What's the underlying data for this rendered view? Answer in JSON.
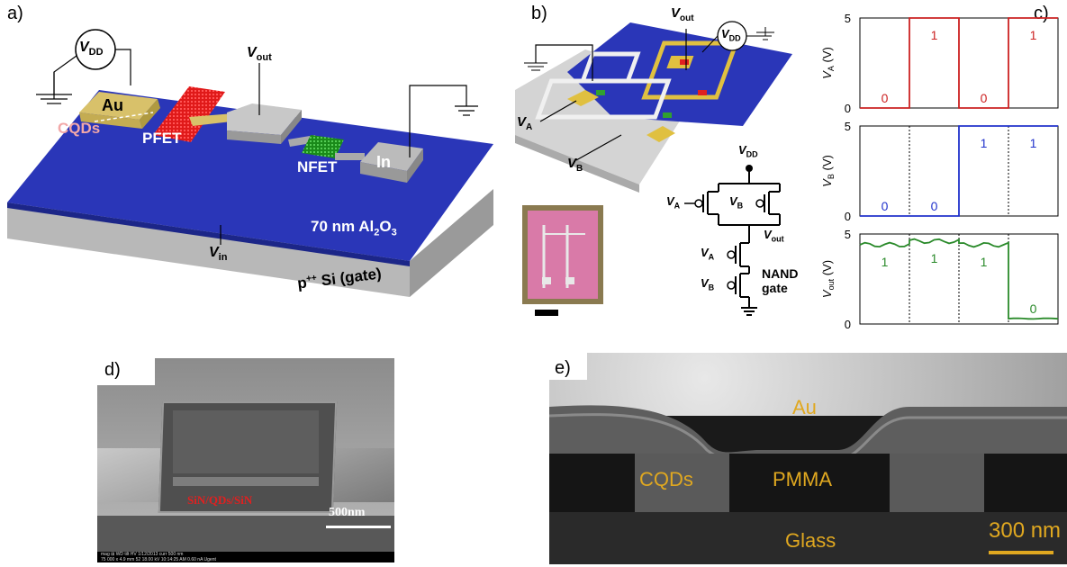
{
  "panels": {
    "a": {
      "label": "a)",
      "vdd": "V",
      "vdd_sub": "DD",
      "vout": "V",
      "vout_sub": "out",
      "vin": "V",
      "vin_sub": "in",
      "au": "Au",
      "cqds": "CQDs",
      "pfet": "PFET",
      "nfet": "NFET",
      "in": "In",
      "oxide_a": "70 nm Al",
      "oxide_sub": "2",
      "oxide_b": "O",
      "oxide_sub2": "3",
      "substrate_a": "p",
      "substrate_sup": "++",
      "substrate_b": " Si (gate)"
    },
    "b": {
      "label": "b)",
      "vout": "V",
      "vout_sub": "out",
      "vdd": "V",
      "vdd_sub": "DD",
      "va": "V",
      "va_sub": "A",
      "vb": "V",
      "vb_sub": "B",
      "sch_vdd": "V",
      "sch_vdd_sub": "DD",
      "sch_vout": "V",
      "sch_vout_sub": "out",
      "sch_va1": "V",
      "sch_va1_sub": "A",
      "sch_vb1": "V",
      "sch_vb1_sub": "B",
      "sch_va2": "V",
      "sch_va2_sub": "A",
      "sch_vb2": "V",
      "sch_vb2_sub": "B",
      "nand1": "NAND",
      "nand2": "gate"
    },
    "c": {
      "label": "c)"
    },
    "d": {
      "label": "d)",
      "layer": "SiN/QDs/SiN",
      "scale": "500nm",
      "info": "mag ⊞   WD    tilt   HV     1/12/2013    curr        500 nm",
      "info2": "75 000 x  4.9 mm  52   18.00 kV  10:14:25 AM  0.60 nA         Ugent"
    },
    "e": {
      "label": "e)",
      "au": "Au",
      "cqds": "CQDs",
      "pmma": "PMMA",
      "glass": "Glass",
      "scale": "300 nm"
    }
  },
  "chart_data": [
    {
      "type": "line",
      "ylabel": "V_A (V)",
      "ylim": [
        0,
        5
      ],
      "yticks": [
        0,
        5
      ],
      "color": "#cc2222",
      "segments": [
        0,
        1,
        0,
        1
      ],
      "values": [
        0,
        5,
        0,
        5
      ],
      "labels": [
        "0",
        "1",
        "0",
        "1"
      ]
    },
    {
      "type": "line",
      "ylabel": "V_B (V)",
      "ylim": [
        0,
        5
      ],
      "yticks": [
        0,
        5
      ],
      "color": "#2233cc",
      "segments": [
        0,
        0,
        1,
        1
      ],
      "values": [
        0,
        0,
        5,
        5
      ],
      "labels": [
        "0",
        "0",
        "1",
        "1"
      ]
    },
    {
      "type": "line",
      "ylabel": "V_out (V)",
      "ylim": [
        0,
        5
      ],
      "yticks": [
        0,
        5
      ],
      "color": "#2a8a2a",
      "segments": [
        1,
        1,
        1,
        0
      ],
      "values": [
        4.4,
        4.6,
        4.4,
        0.3
      ],
      "labels": [
        "1",
        "1",
        "1",
        "0"
      ]
    }
  ]
}
